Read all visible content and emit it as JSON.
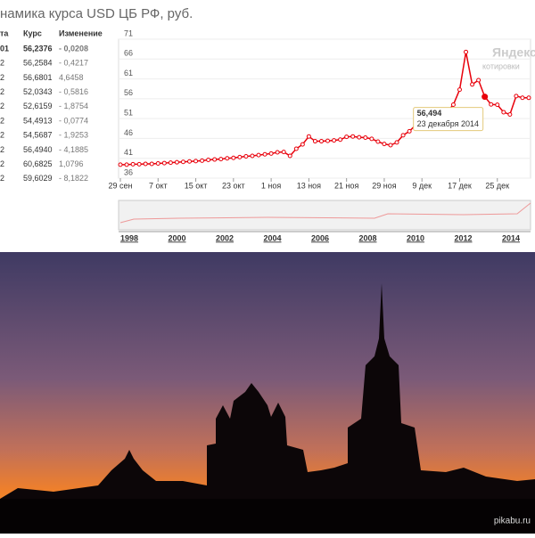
{
  "header": {
    "title": "намика курса USD ЦБ РФ, руб."
  },
  "table": {
    "columns": [
      "та",
      "Курс",
      "Изменение"
    ],
    "rows": [
      [
        "01",
        "56,2376",
        "- 0,0208"
      ],
      [
        "2",
        "56,2584",
        "- 0,4217"
      ],
      [
        "2",
        "56,6801",
        "4,6458"
      ],
      [
        "2",
        "52,0343",
        "- 0,5816"
      ],
      [
        "2",
        "52,6159",
        "- 1,8754"
      ],
      [
        "2",
        "54,4913",
        "- 0,0774"
      ],
      [
        "2",
        "54,5687",
        "- 1,9253"
      ],
      [
        "2",
        "56,4940",
        "- 4,1885"
      ],
      [
        "2",
        "60,6825",
        "1,0796"
      ],
      [
        "2",
        "59,6029",
        "- 8,1822"
      ]
    ]
  },
  "chart_data": {
    "type": "line",
    "color": "#e8000b",
    "categories": [
      "29 сен",
      null,
      null,
      null,
      null,
      null,
      "7 окт",
      null,
      null,
      null,
      null,
      null,
      "15 окт",
      null,
      null,
      null,
      null,
      null,
      "23 окт",
      null,
      null,
      null,
      null,
      null,
      "1 ноя",
      null,
      null,
      null,
      null,
      null,
      "13 ноя",
      null,
      null,
      null,
      null,
      null,
      "21 ноя",
      null,
      null,
      null,
      null,
      null,
      "29 ноя",
      null,
      null,
      null,
      null,
      null,
      "9 дек",
      null,
      null,
      null,
      null,
      null,
      "17 дек",
      null,
      null,
      null,
      null,
      null,
      "25 дек",
      null,
      null,
      null,
      null,
      null
    ],
    "values": [
      39.4,
      39.4,
      39.5,
      39.5,
      39.6,
      39.6,
      39.7,
      39.8,
      39.9,
      40.0,
      40.1,
      40.2,
      40.3,
      40.4,
      40.6,
      40.7,
      40.8,
      41.0,
      41.1,
      41.3,
      41.5,
      41.6,
      41.8,
      42.0,
      42.2,
      42.5,
      42.6,
      41.6,
      43.4,
      44.5,
      46.5,
      45.3,
      45.3,
      45.4,
      45.5,
      45.7,
      46.4,
      46.5,
      46.3,
      46.2,
      45.9,
      45.2,
      44.6,
      44.3,
      45.0,
      46.8,
      47.8,
      49.4,
      51.4,
      50.6,
      52.7,
      52.2,
      52.7,
      54.5,
      58.3,
      67.7851,
      59.6029,
      60.6825,
      56.494,
      54.5687,
      54.4913,
      52.6159,
      52.0343,
      56.6801,
      56.2584,
      56.2376
    ],
    "ylim": [
      36,
      71
    ],
    "yticks": [
      36,
      41,
      46,
      51,
      56,
      61,
      66,
      71
    ],
    "grid": true
  },
  "tooltip": {
    "value": "56,494",
    "date": "23 декабря 2014"
  },
  "watermark": {
    "brand": "Яндекс",
    "sub": "котировки"
  },
  "navigator": {
    "labels": [
      "1998",
      "2000",
      "2002",
      "2004",
      "2006",
      "2008",
      "2010",
      "2012",
      "2014"
    ]
  },
  "footer": "pikabu.ru"
}
